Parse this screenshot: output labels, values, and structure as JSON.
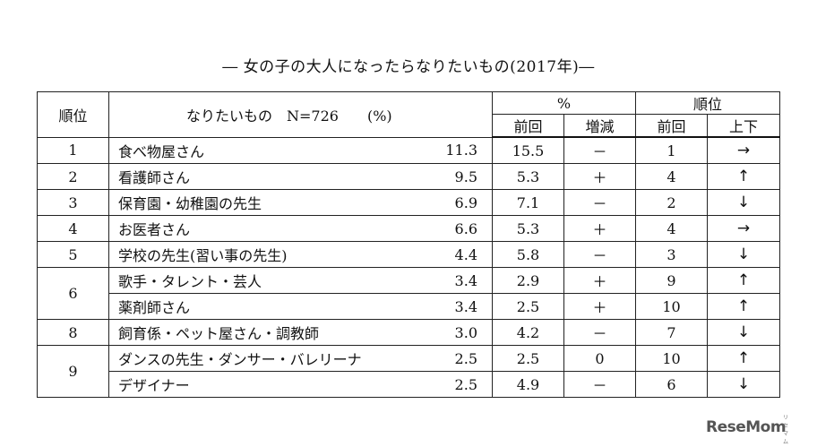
{
  "title": "― 女の子の大人になったらなりたいもの(2017年)―",
  "headers": {
    "rank": "順位",
    "name": "なりたいもの　N=726　　(%)",
    "percent_group": "%",
    "percent_prev": "前回",
    "percent_change": "増減",
    "rank_group": "順位",
    "rank_prev": "前回",
    "rank_move": "上下"
  },
  "rows": [
    {
      "rank": "1",
      "name": "食べ物屋さん",
      "pct": "11.3",
      "prev_pct": "15.5",
      "change": "－",
      "prev_rank": "1",
      "move": "→"
    },
    {
      "rank": "2",
      "name": "看護師さん",
      "pct": "9.5",
      "prev_pct": "5.3",
      "change": "＋",
      "prev_rank": "4",
      "move": "↑"
    },
    {
      "rank": "3",
      "name": "保育園・幼稚園の先生",
      "pct": "6.9",
      "prev_pct": "7.1",
      "change": "－",
      "prev_rank": "2",
      "move": "↓"
    },
    {
      "rank": "4",
      "name": "お医者さん",
      "pct": "6.6",
      "prev_pct": "5.3",
      "change": "＋",
      "prev_rank": "4",
      "move": "→"
    },
    {
      "rank": "5",
      "name": "学校の先生(習い事の先生)",
      "pct": "4.4",
      "prev_pct": "5.8",
      "change": "－",
      "prev_rank": "3",
      "move": "↓"
    },
    {
      "rank": "6",
      "name": "歌手・タレント・芸人",
      "pct": "3.4",
      "prev_pct": "2.9",
      "change": "＋",
      "prev_rank": "9",
      "move": "↑"
    },
    {
      "rank": "",
      "name": "薬剤師さん",
      "pct": "3.4",
      "prev_pct": "2.5",
      "change": "＋",
      "prev_rank": "10",
      "move": "↑"
    },
    {
      "rank": "8",
      "name": "飼育係・ペット屋さん・調教師",
      "pct": "3.0",
      "prev_pct": "4.2",
      "change": "－",
      "prev_rank": "7",
      "move": "↓"
    },
    {
      "rank": "9",
      "name": "ダンスの先生・ダンサー・バレリーナ",
      "pct": "2.5",
      "prev_pct": "2.5",
      "change": "0",
      "prev_rank": "10",
      "move": "↑"
    },
    {
      "rank": "",
      "name": "デザイナー",
      "pct": "2.5",
      "prev_pct": "4.9",
      "change": "－",
      "prev_rank": "6",
      "move": "↓"
    }
  ],
  "logo": {
    "text": "ReseMom",
    "small": "リセマム"
  }
}
